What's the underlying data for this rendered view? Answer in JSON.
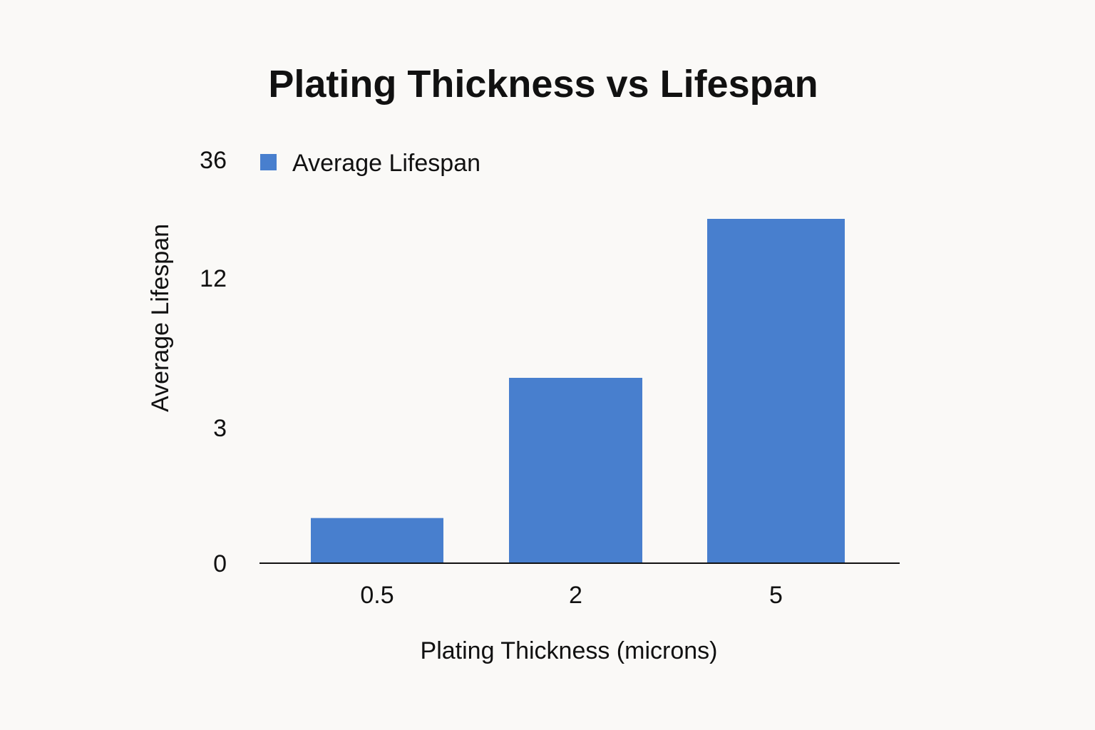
{
  "chart_data": {
    "type": "bar",
    "title": "Plating Thickness vs Lifespan",
    "xlabel": "Plating Thickness (microns)",
    "ylabel": "Average Lifespan",
    "categories": [
      "0.5",
      "2",
      "5"
    ],
    "series": [
      {
        "name": "Average Lifespan",
        "values": [
          1,
          6,
          24
        ]
      }
    ],
    "y_ticks": [
      {
        "label": "0",
        "value": 0
      },
      {
        "label": "3",
        "value": 3
      },
      {
        "label": "12",
        "value": 12
      },
      {
        "label": "36",
        "value": 36
      }
    ],
    "y_scale": "nonlinear-ticks",
    "legend": "top-left",
    "grid": false,
    "bar_color": "#487fce",
    "axis_color": "#111111"
  }
}
